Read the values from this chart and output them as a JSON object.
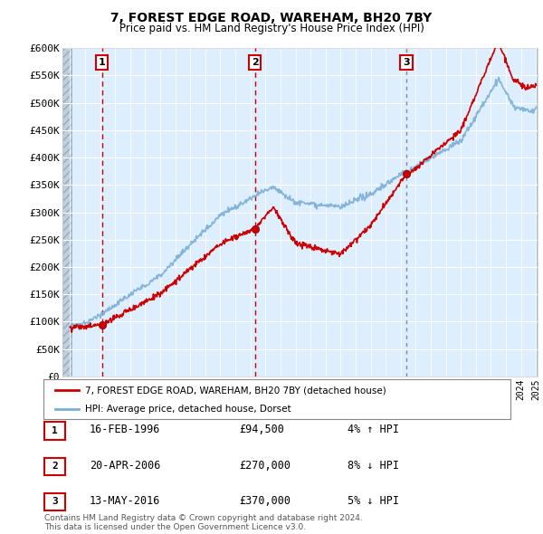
{
  "title1": "7, FOREST EDGE ROAD, WAREHAM, BH20 7BY",
  "title2": "Price paid vs. HM Land Registry's House Price Index (HPI)",
  "ylabel_ticks": [
    "£0",
    "£50K",
    "£100K",
    "£150K",
    "£200K",
    "£250K",
    "£300K",
    "£350K",
    "£400K",
    "£450K",
    "£500K",
    "£550K",
    "£600K"
  ],
  "ytick_values": [
    0,
    50000,
    100000,
    150000,
    200000,
    250000,
    300000,
    350000,
    400000,
    450000,
    500000,
    550000,
    600000
  ],
  "xmin": 1994,
  "xmax": 2025,
  "ymin": 0,
  "ymax": 600000,
  "sale_points": [
    {
      "year": 1996.12,
      "price": 94500,
      "label": "1",
      "line_style": "red_dashed"
    },
    {
      "year": 2006.3,
      "price": 270000,
      "label": "2",
      "line_style": "red_dashed"
    },
    {
      "year": 2016.37,
      "price": 370000,
      "label": "3",
      "line_style": "gray_dotted"
    }
  ],
  "legend_line1": "7, FOREST EDGE ROAD, WAREHAM, BH20 7BY (detached house)",
  "legend_line2": "HPI: Average price, detached house, Dorset",
  "table_rows": [
    {
      "num": "1",
      "date": "16-FEB-1996",
      "price": "£94,500",
      "hpi": "4% ↑ HPI"
    },
    {
      "num": "2",
      "date": "20-APR-2006",
      "price": "£270,000",
      "hpi": "8% ↓ HPI"
    },
    {
      "num": "3",
      "date": "13-MAY-2016",
      "price": "£370,000",
      "hpi": "5% ↓ HPI"
    }
  ],
  "footnote1": "Contains HM Land Registry data © Crown copyright and database right 2024.",
  "footnote2": "This data is licensed under the Open Government Licence v3.0.",
  "hpi_color": "#7bafd4",
  "price_color": "#cc0000",
  "bg_color": "#ddeeff",
  "grid_color": "#ffffff"
}
